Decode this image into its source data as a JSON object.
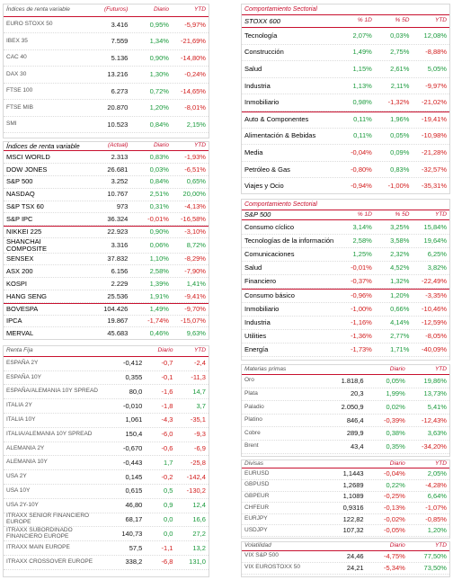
{
  "left": [
    {
      "header": {
        "name": "Índices de renta variable",
        "col1": "(Futuros)",
        "col2": "Diario",
        "col3": "YTD"
      },
      "groups": [
        [
          [
            "EURO STOXX 50",
            "3.416",
            "0,95%",
            "-5,97%"
          ],
          [
            "IBEX 35",
            "7.559",
            "1,34%",
            "-21,69%"
          ],
          [
            "CAC 40",
            "5.136",
            "0,90%",
            "-14,80%"
          ],
          [
            "DAX 30",
            "13.216",
            "1,30%",
            "-0,24%"
          ],
          [
            "FTSE 100",
            "6.273",
            "0,72%",
            "-14,65%"
          ],
          [
            "FTSE MIB",
            "20.870",
            "1,20%",
            "-8,01%"
          ],
          [
            "SMI",
            "10.523",
            "0,84%",
            "2,15%"
          ]
        ]
      ]
    },
    {
      "header": {
        "name": "Índices de renta variable",
        "col1": "(Actual)",
        "col2": "Diario",
        "col3": "YTD"
      },
      "groups": [
        [
          [
            "MSCI WORLD",
            "2.313",
            "0,83%",
            "-1,93%"
          ],
          [
            "DOW JONES",
            "26.681",
            "0,03%",
            "-6,51%"
          ],
          [
            "S&P 500",
            "3.252",
            "0,84%",
            "0,65%"
          ],
          [
            "NASDAQ",
            "10.767",
            "2,51%",
            "20,00%"
          ],
          [
            "S&P TSX 60",
            "973",
            "0,31%",
            "-4,13%"
          ],
          [
            "S&P IPC",
            "36.324",
            "-0,01%",
            "-16,58%"
          ]
        ],
        [
          [
            "NIKKEI 225",
            "22.923",
            "0,90%",
            "-3,10%"
          ],
          [
            "SHANCHAI COMPOSITE",
            "3.316",
            "0,06%",
            "8,72%"
          ],
          [
            "SENSEX",
            "37.832",
            "1,10%",
            "-8,29%"
          ],
          [
            "ASX 200",
            "6.156",
            "2,58%",
            "-7,90%"
          ],
          [
            "KOSPI",
            "2.229",
            "1,39%",
            "1,41%"
          ],
          [
            "HANG SENG",
            "25.536",
            "1,91%",
            "-9,41%"
          ]
        ],
        [
          [
            "BOVESPA",
            "104.426",
            "1,49%",
            "-9,70%"
          ],
          [
            "IPCA",
            "19.867",
            "-1,74%",
            "-15,07%"
          ],
          [
            "MERVAL",
            "45.683",
            "0,46%",
            "9,63%"
          ]
        ]
      ]
    },
    {
      "header": {
        "name": "Renta Fija",
        "col2": "Diario",
        "col3": "YTD"
      },
      "groups": [
        [
          [
            "ESPAÑA 2Y",
            "-0,412",
            "-0,7",
            "-2,4"
          ],
          [
            "ESPAÑA 10Y",
            "0,355",
            "-0,1",
            "-11,3"
          ],
          [
            "ESPAÑA/ALEMANIA 10Y SPREAD",
            "80,0",
            "-1,6",
            "14,7"
          ],
          [
            "ITALIA 2Y",
            "-0,010",
            "-1,8",
            "3,7"
          ],
          [
            "ITALIA 10Y",
            "1,061",
            "-4,3",
            "-35,1"
          ],
          [
            "ITALIA/ALEMANIA 10Y SPREAD",
            "150,4",
            "-6,0",
            "-9,3"
          ],
          [
            "ALEMANIA 2Y",
            "-0,670",
            "-0,6",
            "-6,9"
          ],
          [
            "ALEMANIA 10Y",
            "-0,443",
            "1,7",
            "-25,8"
          ],
          [
            "USA 2Y",
            "0,145",
            "-0,2",
            "-142,4"
          ],
          [
            "USA 10Y",
            "0,615",
            "0,5",
            "-130,2"
          ],
          [
            "USA 2Y-10Y",
            "46,80",
            "0,9",
            "12,4"
          ],
          [
            "ITRAXX SENIOR FINANCIERO EUROPE",
            "68,17",
            "0,0",
            "16,6"
          ],
          [
            "ITRAXX SUBORDINADO FINANCIERO EUROPE",
            "140,73",
            "0,0",
            "27,2"
          ],
          [
            "ITRAXX MAIN EUROPE",
            "57,5",
            "-1,1",
            "13,2"
          ],
          [
            "ITRAXX CROSSOVER EUROPE",
            "338,2",
            "-6,8",
            "131,0"
          ]
        ]
      ]
    }
  ],
  "right": [
    {
      "title": "Comportamiento Sectorial",
      "header": {
        "name": "STOXX 600",
        "col1": "% 1D",
        "col2": "% 5D",
        "col3": "YTD"
      },
      "groups": [
        [
          [
            "Tecnología",
            "2,07%",
            "0,03%",
            "12,08%"
          ],
          [
            "Construcción",
            "1,49%",
            "2,75%",
            "-8,88%"
          ],
          [
            "Salud",
            "1,15%",
            "2,61%",
            "5,05%"
          ],
          [
            "Industria",
            "1,13%",
            "2,11%",
            "-9,97%"
          ],
          [
            "Inmobiliario",
            "0,98%",
            "-1,32%",
            "-21,02%"
          ]
        ],
        [
          [
            "Auto & Componentes",
            "0,11%",
            "1,96%",
            "-19,41%"
          ],
          [
            "Alimentación & Bebidas",
            "0,11%",
            "0,05%",
            "-10,98%"
          ],
          [
            "Media",
            "-0,04%",
            "0,09%",
            "-21,28%"
          ],
          [
            "Petróleo & Gas",
            "-0,80%",
            "0,83%",
            "-32,57%"
          ],
          [
            "Viajes y Ocio",
            "-0,94%",
            "-1,00%",
            "-35,31%"
          ]
        ]
      ]
    },
    {
      "title": "Comportamiento Sectorial",
      "header": {
        "name": "S&P 500",
        "col1": "% 1D",
        "col2": "% 5D",
        "col3": "YTD"
      },
      "groups": [
        [
          [
            "Consumo cíclico",
            "3,14%",
            "3,25%",
            "15,84%"
          ],
          [
            "Tecnologías de la información",
            "2,58%",
            "3,58%",
            "19,64%"
          ],
          [
            "Comunicaciones",
            "1,25%",
            "2,32%",
            "6,25%"
          ],
          [
            "Salud",
            "-0,01%",
            "4,52%",
            "3,82%"
          ],
          [
            "Financiero",
            "-0,37%",
            "1,32%",
            "-22,49%"
          ]
        ],
        [
          [
            "Consumo básico",
            "-0,96%",
            "1,20%",
            "-3,35%"
          ],
          [
            "Inmobiliario",
            "-1,00%",
            "0,66%",
            "-10,46%"
          ],
          [
            "Industria",
            "-1,16%",
            "4,14%",
            "-12,59%"
          ],
          [
            "Utilities",
            "-1,36%",
            "2,77%",
            "-8,05%"
          ],
          [
            "Energía",
            "-1,73%",
            "1,71%",
            "-40,09%"
          ]
        ]
      ]
    },
    {
      "header": {
        "name": "Materias primas",
        "col2": "Diario",
        "col3": "YTD"
      },
      "groups": [
        [
          [
            "Oro",
            "1.818,6",
            "0,05%",
            "19,86%"
          ],
          [
            "Plata",
            "20,3",
            "1,99%",
            "13,73%"
          ],
          [
            "Paladio",
            "2.050,9",
            "0,02%",
            "5,41%"
          ],
          [
            "Platino",
            "846,4",
            "-0,39%",
            "-12,43%"
          ],
          [
            "Cobre",
            "289,9",
            "0,38%",
            "3,63%"
          ],
          [
            "Brent",
            "43,4",
            "0,35%",
            "-34,20%"
          ]
        ]
      ]
    },
    {
      "header": {
        "name": "Divisas",
        "col2": "Diario",
        "col3": "YTD"
      },
      "groups": [
        [
          [
            "EURUSD",
            "1,1443",
            "-0,04%",
            "2,05%"
          ],
          [
            "GBPUSD",
            "1,2689",
            "0,22%",
            "-4,28%"
          ],
          [
            "GBPEUR",
            "1,1089",
            "-0,25%",
            "6,64%"
          ],
          [
            "CHFEUR",
            "0,9316",
            "-0,13%",
            "-1,07%"
          ],
          [
            "EURJPY",
            "122,82",
            "-0,02%",
            "-0,85%"
          ],
          [
            "USDJPY",
            "107,32",
            "-0,05%",
            "1,20%"
          ]
        ]
      ]
    },
    {
      "header": {
        "name": "Volatilidad",
        "col2": "Diario",
        "col3": "YTD"
      },
      "groups": [
        [
          [
            "VIX S&P 500",
            "24,46",
            "-4,75%",
            "77,50%"
          ],
          [
            "VIX EUROSTOXX 50",
            "24,21",
            "-5,34%",
            "73,50%"
          ]
        ]
      ]
    }
  ]
}
